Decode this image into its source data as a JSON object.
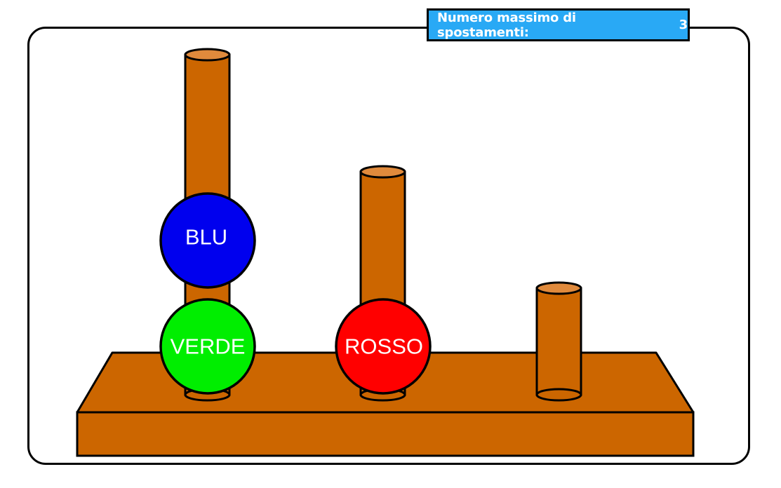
{
  "counter": {
    "label": "Numero massimo di spostamenti:",
    "value": "3"
  },
  "colors": {
    "wood": "#cc6600",
    "wood_top": "#e08a3c",
    "panel": "#29a9f5"
  },
  "pegs": [
    {
      "id": "left",
      "capacity": 3
    },
    {
      "id": "middle",
      "capacity": 2
    },
    {
      "id": "right",
      "capacity": 1
    }
  ],
  "balls": [
    {
      "label": "VERDE",
      "color": "#00ee00",
      "peg": "left",
      "level": 0
    },
    {
      "label": "BLU",
      "color": "#0000ee",
      "peg": "left",
      "level": 1
    },
    {
      "label": "ROSSO",
      "color": "#ff0000",
      "peg": "middle",
      "level": 0
    }
  ]
}
